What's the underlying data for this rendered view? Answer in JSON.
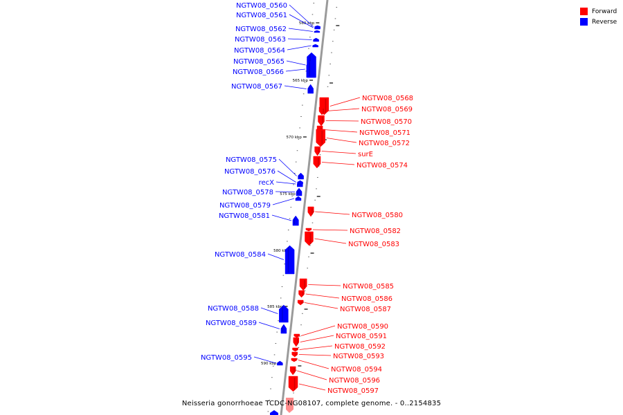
{
  "colors": {
    "forward": "#ff0000",
    "reverse": "#0000ff",
    "backbone": "#9a9a9a"
  },
  "legend": {
    "forward": "Forward",
    "reverse": "Reverse"
  },
  "caption": "Neisseria gonorrhoeae TCDC-NG08107, complete genome. - 0..2154835",
  "ticks": [
    "560 kbp",
    "565 kbp",
    "570 kbp",
    "575 kbp",
    "580 kbp",
    "585 kbp",
    "590 kbp"
  ],
  "genes": [
    {
      "name": "NGTW08_0560",
      "strand": "reverse"
    },
    {
      "name": "NGTW08_0561",
      "strand": "reverse"
    },
    {
      "name": "NGTW08_0562",
      "strand": "reverse"
    },
    {
      "name": "NGTW08_0563",
      "strand": "reverse"
    },
    {
      "name": "NGTW08_0564",
      "strand": "reverse"
    },
    {
      "name": "NGTW08_0565",
      "strand": "reverse"
    },
    {
      "name": "NGTW08_0566",
      "strand": "reverse"
    },
    {
      "name": "NGTW08_0567",
      "strand": "reverse"
    },
    {
      "name": "NGTW08_0568",
      "strand": "forward"
    },
    {
      "name": "NGTW08_0569",
      "strand": "forward"
    },
    {
      "name": "NGTW08_0570",
      "strand": "forward"
    },
    {
      "name": "NGTW08_0571",
      "strand": "forward"
    },
    {
      "name": "NGTW08_0572",
      "strand": "forward"
    },
    {
      "name": "surE",
      "strand": "forward"
    },
    {
      "name": "NGTW08_0574",
      "strand": "forward"
    },
    {
      "name": "NGTW08_0575",
      "strand": "reverse"
    },
    {
      "name": "NGTW08_0576",
      "strand": "reverse"
    },
    {
      "name": "recX",
      "strand": "reverse"
    },
    {
      "name": "NGTW08_0578",
      "strand": "reverse"
    },
    {
      "name": "NGTW08_0579",
      "strand": "reverse"
    },
    {
      "name": "NGTW08_0580",
      "strand": "forward"
    },
    {
      "name": "NGTW08_0581",
      "strand": "reverse"
    },
    {
      "name": "NGTW08_0582",
      "strand": "forward"
    },
    {
      "name": "NGTW08_0583",
      "strand": "forward"
    },
    {
      "name": "NGTW08_0584",
      "strand": "reverse"
    },
    {
      "name": "NGTW08_0585",
      "strand": "forward"
    },
    {
      "name": "NGTW08_0586",
      "strand": "forward"
    },
    {
      "name": "NGTW08_0587",
      "strand": "forward"
    },
    {
      "name": "NGTW08_0588",
      "strand": "reverse"
    },
    {
      "name": "NGTW08_0589",
      "strand": "reverse"
    },
    {
      "name": "NGTW08_0590",
      "strand": "forward"
    },
    {
      "name": "NGTW08_0591",
      "strand": "forward"
    },
    {
      "name": "NGTW08_0592",
      "strand": "forward"
    },
    {
      "name": "NGTW08_0593",
      "strand": "forward"
    },
    {
      "name": "NGTW08_0594",
      "strand": "forward"
    },
    {
      "name": "NGTW08_0595",
      "strand": "reverse"
    },
    {
      "name": "NGTW08_0596",
      "strand": "forward"
    },
    {
      "name": "NGTW08_0597",
      "strand": "forward"
    }
  ]
}
